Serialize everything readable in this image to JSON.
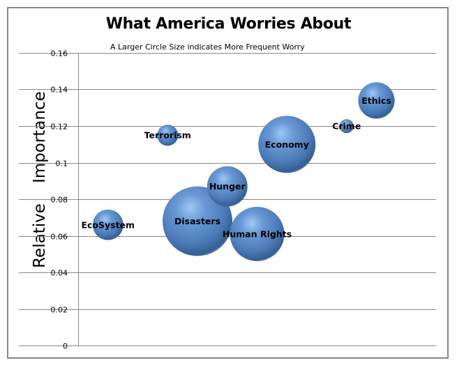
{
  "chart_data": {
    "type": "bubble",
    "title": "What America Worries About",
    "subtitle": "A Larger Circle Size indicates More Frequent Worry",
    "xlabel": "",
    "ylabel": "Relative    Importance",
    "xlim": [
      0,
      12
    ],
    "ylim": [
      0,
      0.16
    ],
    "x_ticks_visible": false,
    "y_ticks": [
      0,
      0.02,
      0.04,
      0.06,
      0.08,
      0.1,
      0.12,
      0.14,
      0.16
    ],
    "y_tick_labels": [
      "0",
      "0.02",
      "0.04",
      "0.06",
      "0.08",
      "0.1",
      "0.12",
      "0.14",
      "0.16"
    ],
    "grid": "horizontal",
    "legend": "none",
    "bubble_color": "#4f81bd",
    "points": [
      {
        "label": "EcoSystem",
        "x": 1,
        "y": 0.066,
        "size": 4.8
      },
      {
        "label": "Terrorism",
        "x": 3,
        "y": 0.115,
        "size": 2.3
      },
      {
        "label": "Disasters",
        "x": 4,
        "y": 0.068,
        "size": 25.0
      },
      {
        "label": "Hunger",
        "x": 5,
        "y": 0.087,
        "size": 8.4
      },
      {
        "label": "Human Rights",
        "x": 6,
        "y": 0.061,
        "size": 15.2
      },
      {
        "label": "Economy",
        "x": 7,
        "y": 0.11,
        "size": 16.8
      },
      {
        "label": "Crime",
        "x": 9,
        "y": 0.12,
        "size": 1.0
      },
      {
        "label": "Ethics",
        "x": 10,
        "y": 0.134,
        "size": 6.8
      }
    ]
  }
}
